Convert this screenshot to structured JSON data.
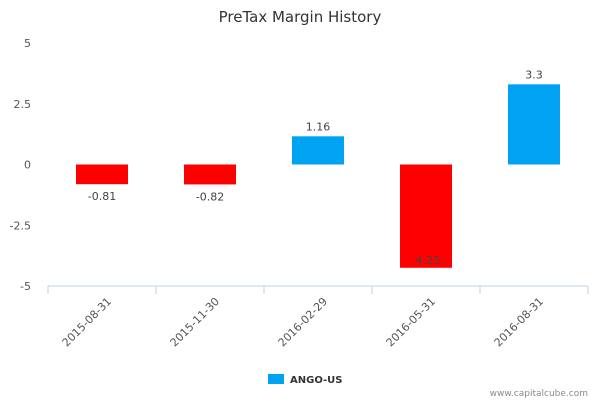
{
  "chart_data": {
    "type": "bar",
    "title": "PreTax Margin History",
    "xlabel": "",
    "ylabel": "",
    "categories": [
      "2015-08-31",
      "2015-11-30",
      "2016-02-29",
      "2016-05-31",
      "2016-08-31"
    ],
    "series": [
      {
        "name": "ANGO-US",
        "values": [
          -0.81,
          -0.82,
          1.16,
          -4.25,
          3.3
        ],
        "data_labels": [
          "-0.81",
          "-0.82",
          "1.16",
          "-4.25",
          "3.3"
        ]
      }
    ],
    "ylim": [
      -5,
      5
    ],
    "y_ticks": [
      5,
      2.5,
      0,
      -2.5,
      -5
    ],
    "y_tick_labels": [
      "5",
      "2.5",
      "0",
      "-2.5",
      "-5"
    ],
    "grid": false,
    "legend_position": "bottom-center",
    "colors": {
      "positive": "#00a2f2",
      "negative": "#ff0000",
      "legend_swatch": "#00a2f2",
      "axis": "#c0d0e0"
    }
  },
  "footer": {
    "credit": "www.capitalcube.com"
  }
}
